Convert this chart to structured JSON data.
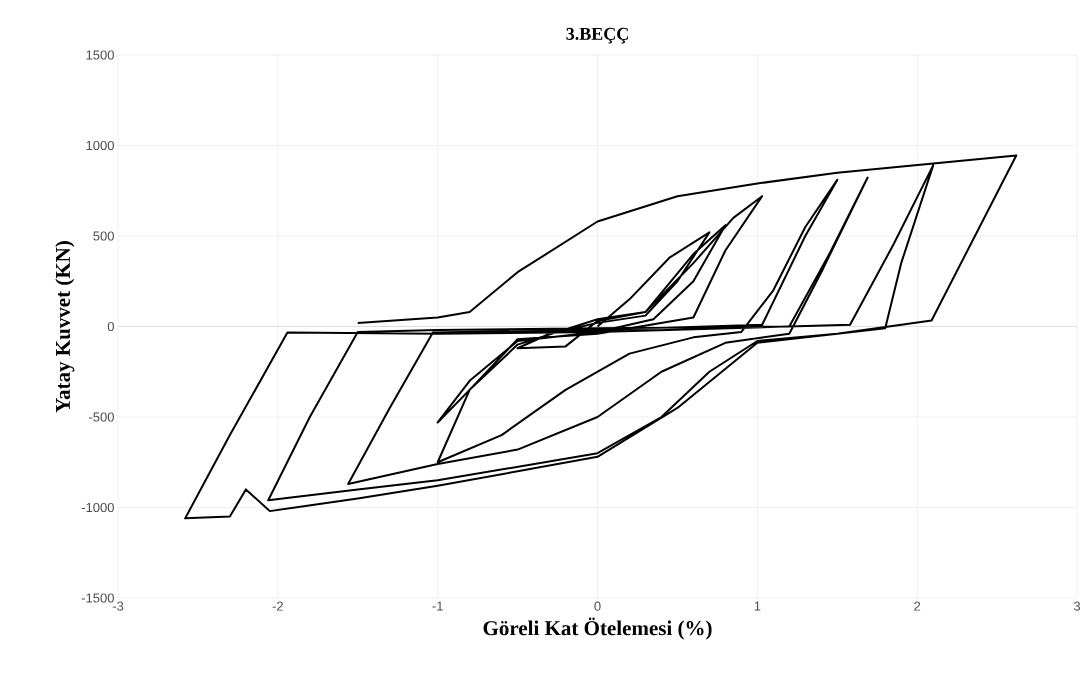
{
  "chart_data": {
    "type": "line",
    "title": "3.BEÇÇ",
    "xlabel": "Göreli Kat Ötelemesi (%)",
    "ylabel": "Yatay Kuvvet (KN)",
    "xlim": [
      -3,
      3
    ],
    "ylim": [
      -1500,
      1500
    ],
    "xticks": [
      -3,
      -2,
      -1,
      0,
      1,
      2,
      3
    ],
    "yticks": [
      -1500,
      -1000,
      -500,
      0,
      500,
      1000,
      1500
    ],
    "grid": true,
    "marker": "none",
    "line_style": "solid",
    "series": [
      {
        "color": "#000000",
        "x": [
          0,
          0.2,
          0.45,
          0.7,
          0.5,
          0.3,
          0,
          -0.3,
          -0.5,
          -0.2,
          0,
          0.3,
          0.6,
          0.8,
          0.6,
          0.35,
          0,
          -0.5,
          -0.8,
          -1.0,
          -0.8,
          -0.5,
          0,
          0.3,
          0.6,
          0.85,
          1.03,
          0.8,
          0.6,
          0,
          -0.5,
          -0.8,
          -1.0,
          -0.6,
          -0.2,
          0.2,
          0.6,
          0.9,
          1.1,
          1.3,
          1.5,
          1.3,
          1.03,
          0,
          -1.03,
          -1.3,
          -1.56,
          -1,
          -0.5,
          0,
          0.4,
          0.8,
          1.2,
          1.4,
          1.69,
          1.45,
          1.2,
          0,
          -1.0,
          -1.5,
          -1.8,
          -2.06,
          -1.5,
          -1,
          0,
          0.4,
          0.7,
          1.0,
          1.5,
          1.8,
          1.9,
          2.1,
          1.85,
          1.58,
          0,
          -1.0,
          -1.94,
          -2.3,
          -2.58,
          -2.3,
          -2.2,
          -2.05,
          -1.5,
          -1,
          0,
          0.5,
          1,
          1.5,
          2.09,
          2.62,
          2.1,
          1.5,
          1,
          0.5,
          0,
          -0.5,
          -0.8,
          -1,
          -1.5
        ],
        "values": [
          0,
          150,
          380,
          520,
          250,
          60,
          20,
          -40,
          -120,
          -110,
          30,
          80,
          400,
          560,
          250,
          40,
          -30,
          -80,
          -300,
          -530,
          -350,
          -100,
          40,
          80,
          350,
          600,
          720,
          420,
          50,
          -40,
          -70,
          -350,
          -750,
          -600,
          -350,
          -150,
          -60,
          -30,
          200,
          550,
          810,
          500,
          10,
          -20,
          -33,
          -450,
          -870,
          -760,
          -680,
          -500,
          -250,
          -90,
          -40,
          300,
          823,
          400,
          0,
          -10,
          -20,
          -30,
          -500,
          -960,
          -900,
          -850,
          -700,
          -500,
          -250,
          -80,
          -40,
          -10,
          350,
          890,
          450,
          10,
          -30,
          -40,
          -33,
          -600,
          -1060,
          -1050,
          -900,
          -1020,
          -950,
          -880,
          -720,
          -450,
          -90,
          -40,
          33,
          945,
          900,
          850,
          790,
          720,
          580,
          300,
          80,
          50,
          20
        ]
      }
    ]
  }
}
